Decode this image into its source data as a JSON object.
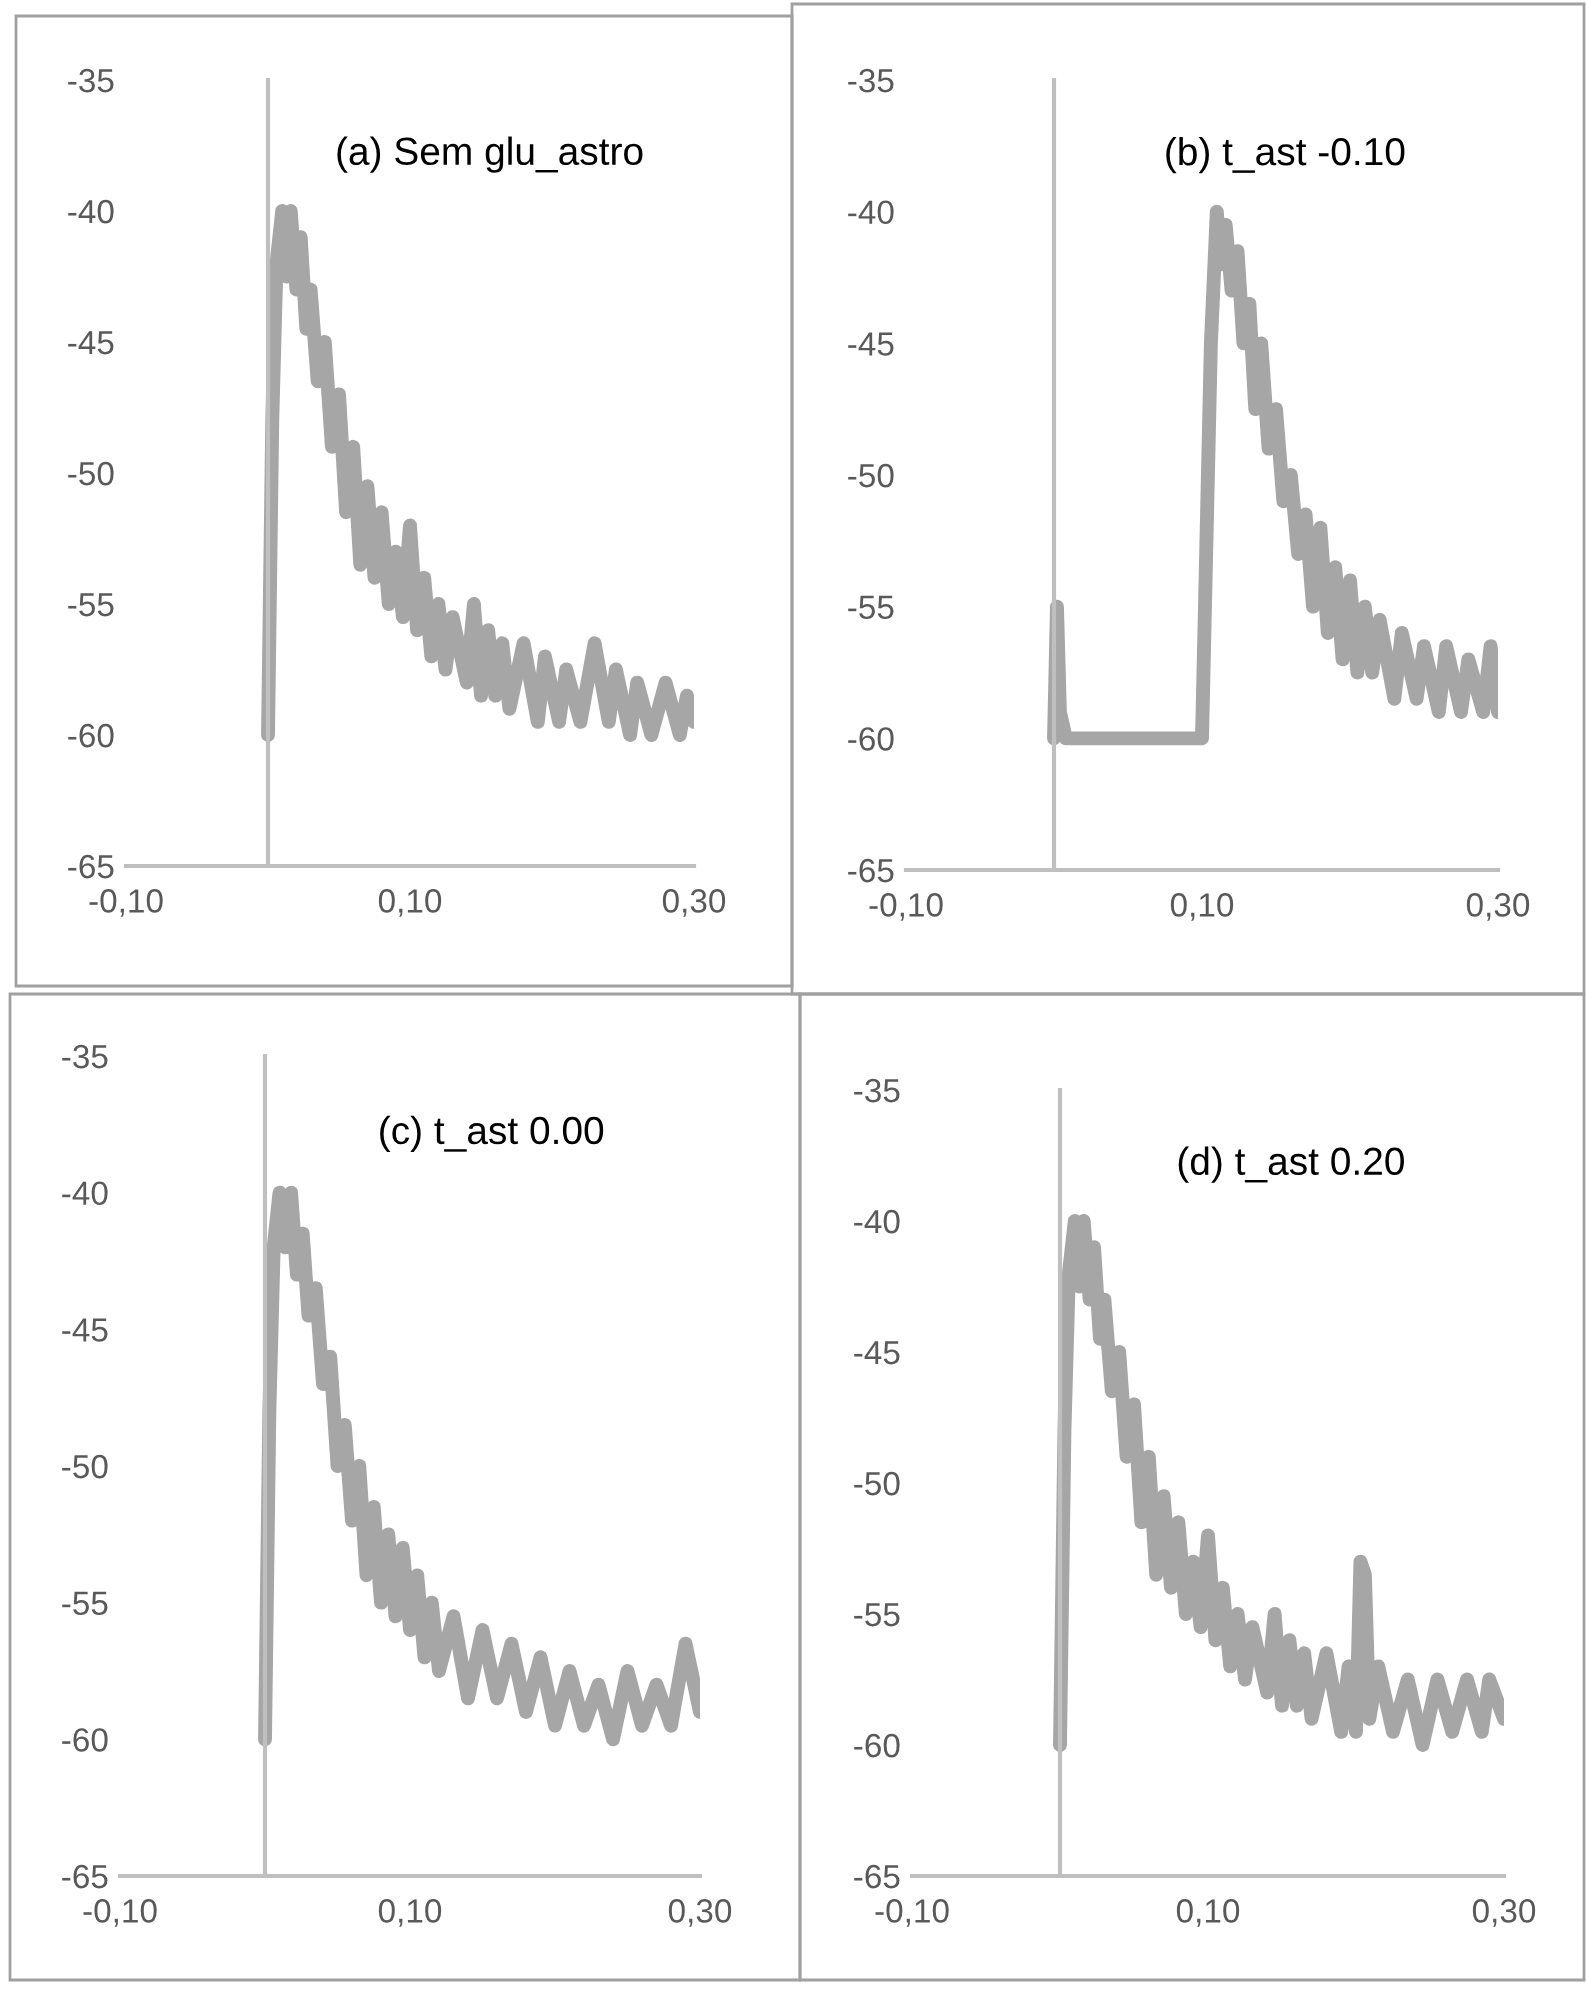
{
  "chart_data": [
    {
      "type": "line",
      "title": "(a) Sem glu_astro",
      "xlim": [
        -0.1,
        0.3
      ],
      "ylim": [
        -65,
        -35
      ],
      "xticks": [
        {
          "value": -0.1,
          "label": "-0,10"
        },
        {
          "value": 0.1,
          "label": "0,10"
        },
        {
          "value": 0.3,
          "label": "0,30"
        }
      ],
      "yticks": [
        -65,
        -60,
        -55,
        -50,
        -45,
        -40,
        -35
      ],
      "grid": false,
      "legend": false,
      "series": [
        {
          "color": "#a6a6a6",
          "x": [
            0,
            0.003,
            0.006,
            0.01,
            0.013,
            0.016,
            0.02,
            0.023,
            0.027,
            0.03,
            0.035,
            0.04,
            0.045,
            0.05,
            0.055,
            0.06,
            0.065,
            0.07,
            0.075,
            0.08,
            0.085,
            0.09,
            0.095,
            0.1,
            0.105,
            0.11,
            0.115,
            0.12,
            0.125,
            0.13,
            0.14,
            0.145,
            0.15,
            0.155,
            0.16,
            0.165,
            0.17,
            0.18,
            0.19,
            0.195,
            0.205,
            0.21,
            0.22,
            0.23,
            0.24,
            0.245,
            0.255,
            0.26,
            0.27,
            0.28,
            0.29,
            0.295,
            0.3
          ],
          "values": [
            -60,
            -48,
            -42,
            -40,
            -42.5,
            -40,
            -43,
            -41,
            -44.5,
            -43,
            -46.5,
            -45,
            -49,
            -47,
            -51.5,
            -49,
            -53.5,
            -50.5,
            -54,
            -51.5,
            -55,
            -53,
            -55.5,
            -52,
            -56,
            -54,
            -57,
            -55,
            -57.5,
            -55.5,
            -58,
            -55,
            -58.5,
            -56,
            -58.5,
            -56.5,
            -59,
            -56.5,
            -59.5,
            -57,
            -59.5,
            -57.5,
            -59.5,
            -56.5,
            -59.5,
            -57.5,
            -60,
            -58,
            -60,
            -58,
            -60,
            -58.5,
            -59.5
          ]
        }
      ]
    },
    {
      "type": "line",
      "title": "(b) t_ast -0.10",
      "xlim": [
        -0.1,
        0.3
      ],
      "ylim": [
        -65,
        -35
      ],
      "xticks": [
        {
          "value": -0.1,
          "label": "-0,10"
        },
        {
          "value": 0.1,
          "label": "0,10"
        },
        {
          "value": 0.3,
          "label": "0,30"
        }
      ],
      "yticks": [
        -65,
        -60,
        -55,
        -50,
        -45,
        -40,
        -35
      ],
      "grid": false,
      "legend": false,
      "series": [
        {
          "color": "#a6a6a6",
          "x": [
            0,
            0.002,
            0.004,
            0.008,
            0.1,
            0.102,
            0.106,
            0.11,
            0.113,
            0.116,
            0.12,
            0.124,
            0.128,
            0.132,
            0.136,
            0.14,
            0.145,
            0.15,
            0.155,
            0.16,
            0.165,
            0.17,
            0.175,
            0.18,
            0.185,
            0.19,
            0.195,
            0.2,
            0.205,
            0.21,
            0.215,
            0.22,
            0.23,
            0.235,
            0.245,
            0.25,
            0.26,
            0.265,
            0.275,
            0.28,
            0.29,
            0.295,
            0.3
          ],
          "values": [
            -60,
            -55,
            -59,
            -60,
            -60,
            -55,
            -45,
            -40,
            -42,
            -40.5,
            -43,
            -41.5,
            -45,
            -43.5,
            -47.5,
            -45,
            -49,
            -47.5,
            -51,
            -50,
            -53,
            -51.5,
            -55,
            -52,
            -56,
            -53.5,
            -57,
            -54,
            -57.5,
            -55,
            -57.5,
            -55.5,
            -58.5,
            -56,
            -58.5,
            -56.5,
            -59,
            -56.5,
            -59,
            -57,
            -59,
            -56.5,
            -59
          ]
        }
      ]
    },
    {
      "type": "line",
      "title": "(c) t_ast 0.00",
      "xlim": [
        -0.1,
        0.3
      ],
      "ylim": [
        -65,
        -35
      ],
      "xticks": [
        {
          "value": -0.1,
          "label": "-0,10"
        },
        {
          "value": 0.1,
          "label": "0,10"
        },
        {
          "value": 0.3,
          "label": "0,30"
        }
      ],
      "yticks": [
        -65,
        -60,
        -55,
        -50,
        -45,
        -40,
        -35
      ],
      "grid": false,
      "legend": false,
      "series": [
        {
          "color": "#a6a6a6",
          "x": [
            0,
            0.003,
            0.006,
            0.01,
            0.014,
            0.018,
            0.022,
            0.026,
            0.03,
            0.035,
            0.04,
            0.045,
            0.05,
            0.055,
            0.06,
            0.065,
            0.07,
            0.075,
            0.08,
            0.085,
            0.09,
            0.095,
            0.1,
            0.105,
            0.11,
            0.115,
            0.12,
            0.13,
            0.14,
            0.15,
            0.16,
            0.17,
            0.18,
            0.19,
            0.2,
            0.21,
            0.22,
            0.23,
            0.24,
            0.25,
            0.26,
            0.27,
            0.28,
            0.29,
            0.3
          ],
          "values": [
            -60,
            -48,
            -42,
            -40,
            -42,
            -40,
            -43,
            -41.5,
            -44.5,
            -43.5,
            -47,
            -46,
            -50,
            -48.5,
            -52,
            -50,
            -54,
            -51.5,
            -55,
            -52.5,
            -55.5,
            -53,
            -56,
            -54,
            -57,
            -55,
            -57.5,
            -55.5,
            -58.5,
            -56,
            -58.5,
            -56.5,
            -59,
            -57,
            -59.5,
            -57.5,
            -59.5,
            -58,
            -60,
            -57.5,
            -59.5,
            -58,
            -59.5,
            -56.5,
            -59
          ]
        }
      ]
    },
    {
      "type": "line",
      "title": "(d) t_ast 0.20",
      "xlim": [
        -0.1,
        0.3
      ],
      "ylim": [
        -65,
        -35
      ],
      "xticks": [
        {
          "value": -0.1,
          "label": "-0,10"
        },
        {
          "value": 0.1,
          "label": "0,10"
        },
        {
          "value": 0.3,
          "label": "0,30"
        }
      ],
      "yticks": [
        -65,
        -60,
        -55,
        -50,
        -45,
        -40,
        -35
      ],
      "grid": false,
      "legend": false,
      "series": [
        {
          "color": "#a6a6a6",
          "x": [
            0,
            0.003,
            0.006,
            0.01,
            0.013,
            0.016,
            0.02,
            0.023,
            0.027,
            0.03,
            0.035,
            0.04,
            0.045,
            0.05,
            0.055,
            0.06,
            0.065,
            0.07,
            0.075,
            0.08,
            0.085,
            0.09,
            0.095,
            0.1,
            0.105,
            0.11,
            0.115,
            0.12,
            0.125,
            0.13,
            0.14,
            0.145,
            0.15,
            0.155,
            0.16,
            0.165,
            0.17,
            0.18,
            0.19,
            0.195,
            0.2,
            0.203,
            0.206,
            0.209,
            0.215,
            0.225,
            0.235,
            0.245,
            0.255,
            0.265,
            0.275,
            0.285,
            0.29,
            0.3
          ],
          "values": [
            -60,
            -48,
            -42,
            -40,
            -42.5,
            -40,
            -43,
            -41,
            -44.5,
            -43,
            -46.5,
            -45,
            -49,
            -47,
            -51.5,
            -49,
            -53.5,
            -50.5,
            -54,
            -51.5,
            -55,
            -53,
            -55.5,
            -52,
            -56,
            -54,
            -57,
            -55,
            -57.5,
            -55.5,
            -58,
            -55,
            -58.5,
            -56,
            -58.5,
            -56.5,
            -59,
            -56.5,
            -59.5,
            -57,
            -59.5,
            -53,
            -53.5,
            -59,
            -57,
            -59.5,
            -57.5,
            -60,
            -57.5,
            -59.5,
            -57.5,
            -59.5,
            -57.5,
            -59
          ]
        }
      ]
    }
  ]
}
